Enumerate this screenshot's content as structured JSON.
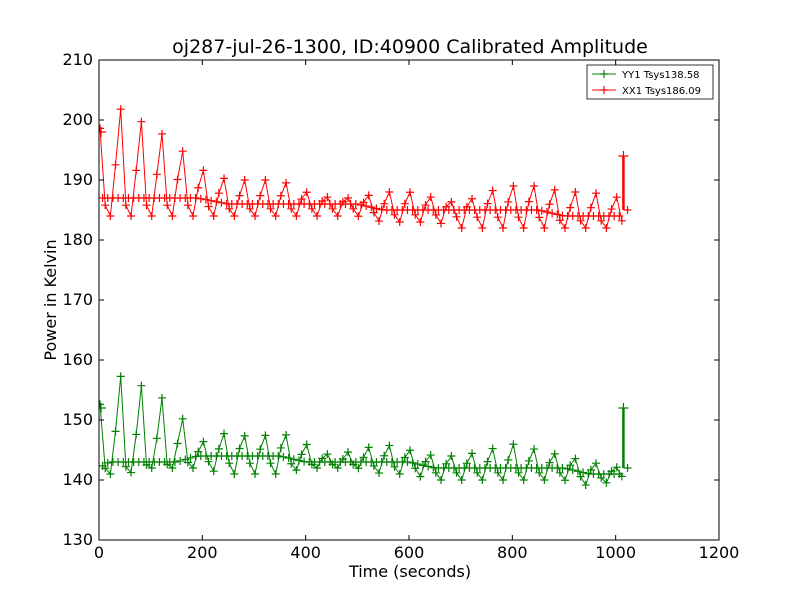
{
  "chart_data": {
    "type": "line",
    "title": "oj287-jul-26-1300, ID:40900 Calibrated Amplitude",
    "xlabel": "Time (seconds)",
    "ylabel": "Power in Kelvin",
    "xlim": [
      0,
      1200
    ],
    "ylim": [
      130,
      210
    ],
    "xticks": [
      0,
      200,
      400,
      600,
      800,
      1000,
      1200
    ],
    "yticks": [
      130,
      140,
      150,
      160,
      170,
      180,
      190,
      200,
      210
    ],
    "grid": false,
    "legend_position": "top-right",
    "marker": "plus",
    "x_start": 2,
    "x_end": 1012,
    "x_step": 10,
    "series": [
      {
        "name": "YY1 Tsys138.58",
        "color": "#008000",
        "envelope_x": [
          0,
          20,
          50,
          100,
          150,
          190,
          250,
          300,
          350,
          400,
          450,
          500,
          550,
          600,
          650,
          700,
          750,
          800,
          850,
          900,
          950,
          1010
        ],
        "upper": [
          152,
          158,
          157,
          155,
          152,
          146,
          148,
          147,
          148,
          146,
          144,
          145,
          146,
          145,
          144,
          144,
          145,
          146,
          145,
          144,
          143,
          142
        ],
        "lower": [
          141,
          141,
          141,
          142,
          142,
          142,
          141,
          141,
          141,
          142,
          142,
          142,
          141,
          141,
          140,
          140,
          140,
          140,
          140,
          140,
          139,
          140
        ],
        "mean": [
          142,
          143,
          143,
          143,
          143,
          144,
          144,
          144,
          144,
          143,
          143,
          143,
          143,
          143,
          142,
          142,
          142,
          142,
          142,
          142,
          141,
          141
        ],
        "end_spike_x": 1015,
        "end_spike_low": 142,
        "end_spike_high": 152
      },
      {
        "name": "XX1 Tsys186.09",
        "color": "#ff0000",
        "envelope_x": [
          0,
          20,
          50,
          100,
          150,
          190,
          250,
          300,
          350,
          400,
          450,
          500,
          550,
          600,
          650,
          700,
          750,
          800,
          850,
          900,
          950,
          1010
        ],
        "upper": [
          198,
          204,
          201,
          199,
          196,
          192,
          190,
          190,
          190,
          188,
          187,
          187,
          188,
          188,
          187,
          186,
          188,
          189,
          189,
          188,
          188,
          187
        ],
        "lower": [
          184,
          184,
          184,
          184,
          184,
          184,
          184,
          184,
          184,
          184,
          184,
          184,
          183,
          183,
          183,
          182,
          182,
          182,
          182,
          182,
          182,
          182
        ],
        "mean": [
          187,
          187,
          187,
          187,
          187,
          187,
          186,
          186,
          186,
          186,
          186,
          186,
          185,
          185,
          185,
          185,
          185,
          185,
          185,
          184,
          184,
          184
        ],
        "end_spike_x": 1015,
        "end_spike_low": 185,
        "end_spike_high": 194
      }
    ]
  }
}
